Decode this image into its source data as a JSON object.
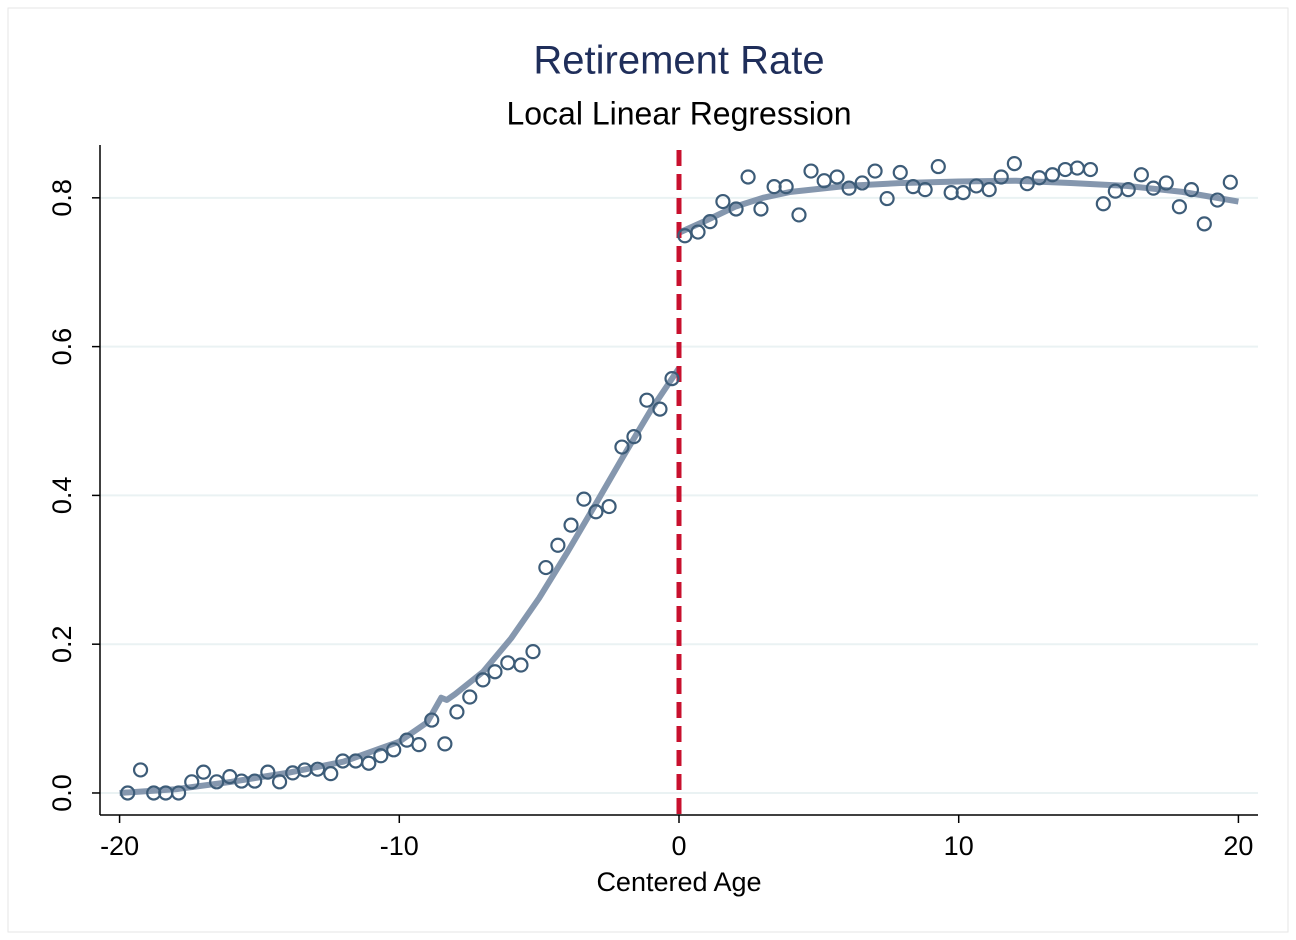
{
  "chart_data": {
    "type": "scatter",
    "title": "Retirement Rate",
    "subtitle": "Local Linear Regression",
    "x_label": "Centered Age",
    "xlim": [
      -20.7,
      20.7
    ],
    "ylim": [
      -0.0296,
      0.871
    ],
    "xticks": [
      -20,
      -10,
      0,
      10,
      20
    ],
    "yticks": [
      {
        "value": 0,
        "label": "0.0"
      },
      0.2,
      0.4,
      0.6,
      0.8
    ],
    "grid": true,
    "vline": 0,
    "vline_color": "#c8102e",
    "series": [
      {
        "mode": "markers",
        "color": "#3d5c78",
        "x": [
          -19.71,
          -19.25,
          -18.78,
          -18.35,
          -17.89,
          -17.42,
          -17.0,
          -16.53,
          -16.06,
          -15.64,
          -15.17,
          -14.7,
          -14.28,
          -13.81,
          -13.38,
          -12.92,
          -12.45,
          -12.02,
          -11.56,
          -11.09,
          -10.66,
          -10.2,
          -9.73,
          -9.3,
          -8.84,
          -8.37,
          -7.94,
          -7.48,
          -7.01,
          -6.58,
          -6.12,
          -5.65,
          -5.22,
          -4.76,
          -4.33,
          -3.86,
          -3.4,
          -2.97,
          -2.5,
          -2.04,
          -1.61,
          -1.15,
          -0.68,
          -0.25,
          0.21,
          0.68,
          1.11,
          1.57,
          2.04,
          2.47,
          2.93,
          3.4,
          3.83,
          4.29,
          4.72,
          5.19,
          5.65,
          6.08,
          6.55,
          7.01,
          7.44,
          7.91,
          8.37,
          8.8,
          9.27,
          9.73,
          10.16,
          10.63,
          11.09,
          11.52,
          11.99,
          12.45,
          12.88,
          13.35,
          13.81,
          14.24,
          14.71,
          15.17,
          15.6,
          16.06,
          16.53,
          16.96,
          17.42,
          17.89,
          18.32,
          18.78,
          19.25,
          19.71
        ],
        "values": [
          0,
          0.031,
          0,
          0,
          0,
          0.015,
          0.028,
          0.015,
          0.022,
          0.016,
          0.016,
          0.028,
          0.015,
          0.027,
          0.031,
          0.032,
          0.026,
          0.043,
          0.043,
          0.04,
          0.05,
          0.058,
          0.071,
          0.065,
          0.098,
          0.066,
          0.109,
          0.129,
          0.152,
          0.163,
          0.175,
          0.172,
          0.19,
          0.303,
          0.333,
          0.36,
          0.395,
          0.378,
          0.385,
          0.465,
          0.479,
          0.528,
          0.516,
          0.557,
          0.749,
          0.754,
          0.768,
          0.795,
          0.785,
          0.828,
          0.785,
          0.815,
          0.815,
          0.777,
          0.836,
          0.823,
          0.828,
          0.813,
          0.82,
          0.836,
          0.799,
          0.834,
          0.815,
          0.811,
          0.842,
          0.807,
          0.807,
          0.816,
          0.811,
          0.828,
          0.846,
          0.819,
          0.827,
          0.831,
          0.838,
          0.84,
          0.838,
          0.792,
          0.809,
          0.811,
          0.831,
          0.813,
          0.82,
          0.788,
          0.811,
          0.765,
          0.797,
          0.821
        ]
      },
      {
        "mode": "line",
        "color": "#8597ae",
        "x": [
          -20,
          -18,
          -16,
          -14,
          -12,
          -10,
          -9,
          -8.5,
          -8.3,
          -8,
          -7,
          -6,
          -5,
          -4,
          -3,
          -2,
          -1,
          0
        ],
        "values": [
          0,
          0.005,
          0.015,
          0.027,
          0.042,
          0.069,
          0.095,
          0.128,
          0.125,
          0.133,
          0.163,
          0.208,
          0.262,
          0.323,
          0.387,
          0.452,
          0.515,
          0.571
        ]
      },
      {
        "mode": "line",
        "color": "#8597ae",
        "x": [
          0,
          1,
          2,
          3,
          4,
          6,
          8,
          10,
          12,
          14,
          16,
          18,
          20
        ],
        "values": [
          0.753,
          0.77,
          0.788,
          0.8,
          0.808,
          0.816,
          0.82,
          0.822,
          0.823,
          0.82,
          0.816,
          0.808,
          0.795
        ]
      }
    ]
  }
}
